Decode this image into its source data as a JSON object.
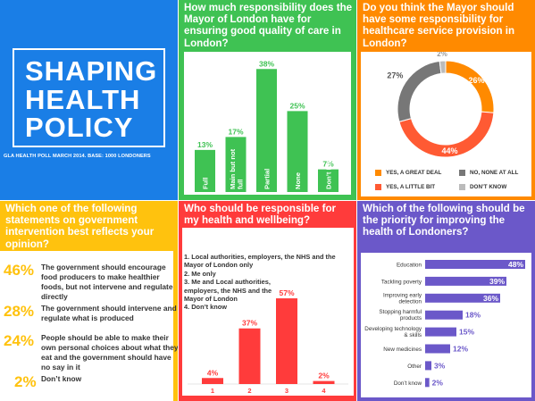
{
  "title_panel": {
    "title_line1": "SHAPING",
    "title_line2": "HEALTH",
    "title_line3": "POLICY",
    "poll_note": "GLA HEALTH POLL MARCH 2014. BASE: 1000 LONDONERS"
  },
  "colors": {
    "blue": "#1a7ee6",
    "green": "#3fc253",
    "orange": "#ff8a00",
    "yellow": "#ffc20e",
    "red": "#ff3b3b",
    "purple": "#6b58c9"
  },
  "q1": {
    "question": "How much responsibility does the Mayor of London have for ensuring good quality of care in London?"
  },
  "q2": {
    "question": "Do you think the Mayor should have some responsibility for healthcare service provision in London?"
  },
  "q3": {
    "question": "Which one of the following statements on government intervention best reflects your opinion?",
    "options": [
      {
        "pct": "46%",
        "text": "The government should encourage food producers to make healthier foods, but not intervene and regulate directly"
      },
      {
        "pct": "28%",
        "text": "The government should intervene and regulate what is produced"
      },
      {
        "pct": "24%",
        "text": "People should be able to make their own personal choices about what they eat and the government should have no say in it"
      },
      {
        "pct": "2%",
        "text": "Don’t know"
      }
    ]
  },
  "q4": {
    "question": "Who should be responsible for my health and wellbeing?",
    "legend": [
      "1. Local authorities, employers, the NHS and the Mayor of London only",
      "2. Me only",
      "3. Me and Local authorities, employers, the NHS and the Mayor of London",
      "4. Don’t know"
    ]
  },
  "q5": {
    "question": "Which of the following should be the priority for improving the health of Londoners?"
  },
  "chart_data": [
    {
      "type": "bar",
      "title": "How much responsibility does the Mayor of London have for ensuring good quality of care in London?",
      "categories": [
        "Full",
        "Main but not full",
        "Partial",
        "None",
        "Don’t Know"
      ],
      "values": [
        13,
        17,
        38,
        25,
        7
      ],
      "value_labels": [
        "13%",
        "17%",
        "38%",
        "25%",
        "7%"
      ],
      "ylim": [
        0,
        40
      ]
    },
    {
      "type": "pie",
      "title": "Do you think the Mayor should have some responsibility for healthcare service provision in London?",
      "categories": [
        "YES, A GREAT DEAL",
        "YES, A LITTLE BIT",
        "NO, NONE AT ALL",
        "DON’T KNOW"
      ],
      "values": [
        26,
        44,
        27,
        2
      ],
      "value_labels": [
        "26%",
        "44%",
        "27%",
        "2%"
      ],
      "colors": [
        "#ff8a00",
        "#ff5a33",
        "#777777",
        "#bbbbbb"
      ]
    },
    {
      "type": "bar",
      "title": "Who should be responsible for my health and wellbeing?",
      "categories": [
        "1",
        "2",
        "3",
        "4"
      ],
      "values": [
        4,
        37,
        57,
        2
      ],
      "value_labels": [
        "4%",
        "37%",
        "57%",
        "2%"
      ],
      "ylim": [
        0,
        60
      ]
    },
    {
      "type": "bar",
      "orientation": "horizontal",
      "title": "Which of the following should be the priority for improving the health of Londoners?",
      "categories": [
        "Education",
        "Tackling poverty",
        "Improving early detection",
        "Stopping harmful products",
        "Developing technology & skills",
        "New medicines",
        "Other",
        "Don’t know"
      ],
      "values": [
        48,
        39,
        36,
        18,
        15,
        12,
        3,
        2
      ],
      "value_labels": [
        "48%",
        "39%",
        "36%",
        "18%",
        "15%",
        "12%",
        "3%",
        "2%"
      ],
      "xlim": [
        0,
        48
      ]
    }
  ]
}
